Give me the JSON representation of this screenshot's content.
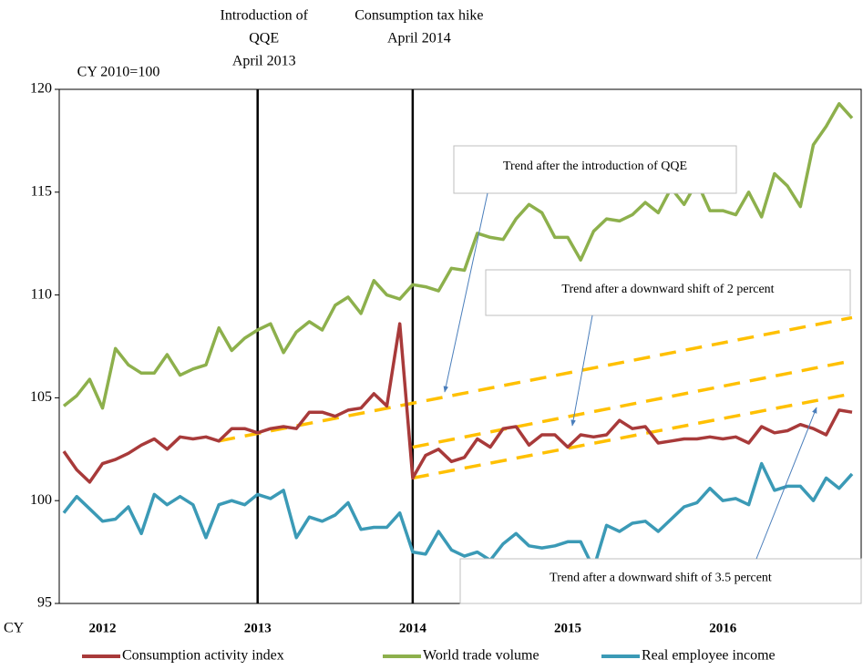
{
  "chart_data": {
    "type": "line",
    "ylabel": "CY 2010=100",
    "xlabel": "CY",
    "categories": [
      null,
      null,
      null,
      "2012",
      null,
      null,
      null,
      null,
      null,
      null,
      null,
      null,
      null,
      null,
      null,
      "2013",
      null,
      null,
      null,
      null,
      null,
      null,
      null,
      null,
      null,
      null,
      null,
      "2014",
      null,
      null,
      null,
      null,
      null,
      null,
      null,
      null,
      null,
      null,
      null,
      "2015",
      null,
      null,
      null,
      null,
      null,
      null,
      null,
      null,
      null,
      null,
      null,
      "2016",
      null,
      null,
      null,
      null,
      null,
      null,
      null,
      null,
      null,
      null
    ],
    "ylim": [
      95,
      120
    ],
    "yticks": [
      95,
      100,
      105,
      110,
      115,
      120
    ],
    "series": [
      {
        "name": "Consumption activity index",
        "color": "#a83a3a",
        "values": [
          102.4,
          101.5,
          100.9,
          101.8,
          102.0,
          102.3,
          102.7,
          103.0,
          102.5,
          103.1,
          103.0,
          103.1,
          102.9,
          103.5,
          103.5,
          103.3,
          103.5,
          103.6,
          103.5,
          104.3,
          104.3,
          104.1,
          104.4,
          104.5,
          105.2,
          104.6,
          108.6,
          101.1,
          102.2,
          102.5,
          101.9,
          102.1,
          103.0,
          102.6,
          103.5,
          103.6,
          102.7,
          103.2,
          103.2,
          102.6,
          103.2,
          103.1,
          103.2,
          103.9,
          103.5,
          103.6,
          102.8,
          102.9,
          103.0,
          103.0,
          103.1,
          103.0,
          103.1,
          102.8,
          103.6,
          103.3,
          103.4,
          103.7,
          103.5,
          103.2,
          104.4,
          104.3
        ]
      },
      {
        "name": "World trade volume",
        "color": "#8db04c",
        "values": [
          104.6,
          105.1,
          105.9,
          104.5,
          107.4,
          106.6,
          106.2,
          106.2,
          107.1,
          106.1,
          106.4,
          106.6,
          108.4,
          107.3,
          107.9,
          108.3,
          108.6,
          107.2,
          108.2,
          108.7,
          108.3,
          109.5,
          109.9,
          109.1,
          110.7,
          110.0,
          109.8,
          110.5,
          110.4,
          110.2,
          111.3,
          111.2,
          113.0,
          112.8,
          112.7,
          113.7,
          114.4,
          114.0,
          112.8,
          112.8,
          111.7,
          113.1,
          113.7,
          113.6,
          113.9,
          114.5,
          114.0,
          115.2,
          114.4,
          115.5,
          114.1,
          114.1,
          113.9,
          115.0,
          113.8,
          115.9,
          115.3,
          114.3,
          117.3,
          118.2,
          119.3,
          118.6
        ]
      },
      {
        "name": "Real employee income",
        "color": "#3b9ab6",
        "values": [
          99.4,
          100.2,
          99.6,
          99.0,
          99.1,
          99.7,
          98.4,
          100.3,
          99.8,
          100.2,
          99.8,
          98.2,
          99.8,
          100.0,
          99.8,
          100.3,
          100.1,
          100.5,
          98.2,
          99.2,
          99.0,
          99.3,
          99.9,
          98.6,
          98.7,
          98.7,
          99.4,
          97.5,
          97.4,
          98.5,
          97.6,
          97.3,
          97.5,
          97.1,
          97.9,
          98.4,
          97.8,
          97.7,
          97.8,
          98.0,
          98.0,
          96.7,
          98.8,
          98.5,
          98.9,
          99.0,
          98.5,
          99.1,
          99.7,
          99.9,
          100.6,
          100.0,
          100.1,
          99.8,
          101.8,
          100.5,
          100.7,
          100.7,
          100.0,
          101.1,
          100.6,
          101.3
        ]
      }
    ],
    "events": [
      {
        "at_index": 15,
        "label": [
          "Introduction of",
          "QQE",
          "April 2013"
        ]
      },
      {
        "at_index": 27,
        "label": [
          "Consumption tax hike",
          "April 2014"
        ]
      }
    ],
    "trend_lines": [
      {
        "label": "Trend after the introduction of QQE",
        "start_index": 12,
        "end_index": 61,
        "start": 102.9,
        "end": 108.9
      },
      {
        "label": "Trend after a downward shift of 2 percent",
        "start_index": 27,
        "end_index": 61,
        "start": 102.6,
        "end": 106.8
      },
      {
        "label": "Trend after a downward shift of 3.5 percent",
        "start_index": 27,
        "end_index": 61,
        "start": 101.1,
        "end": 105.2
      }
    ],
    "trend_color": "#ffc000"
  }
}
